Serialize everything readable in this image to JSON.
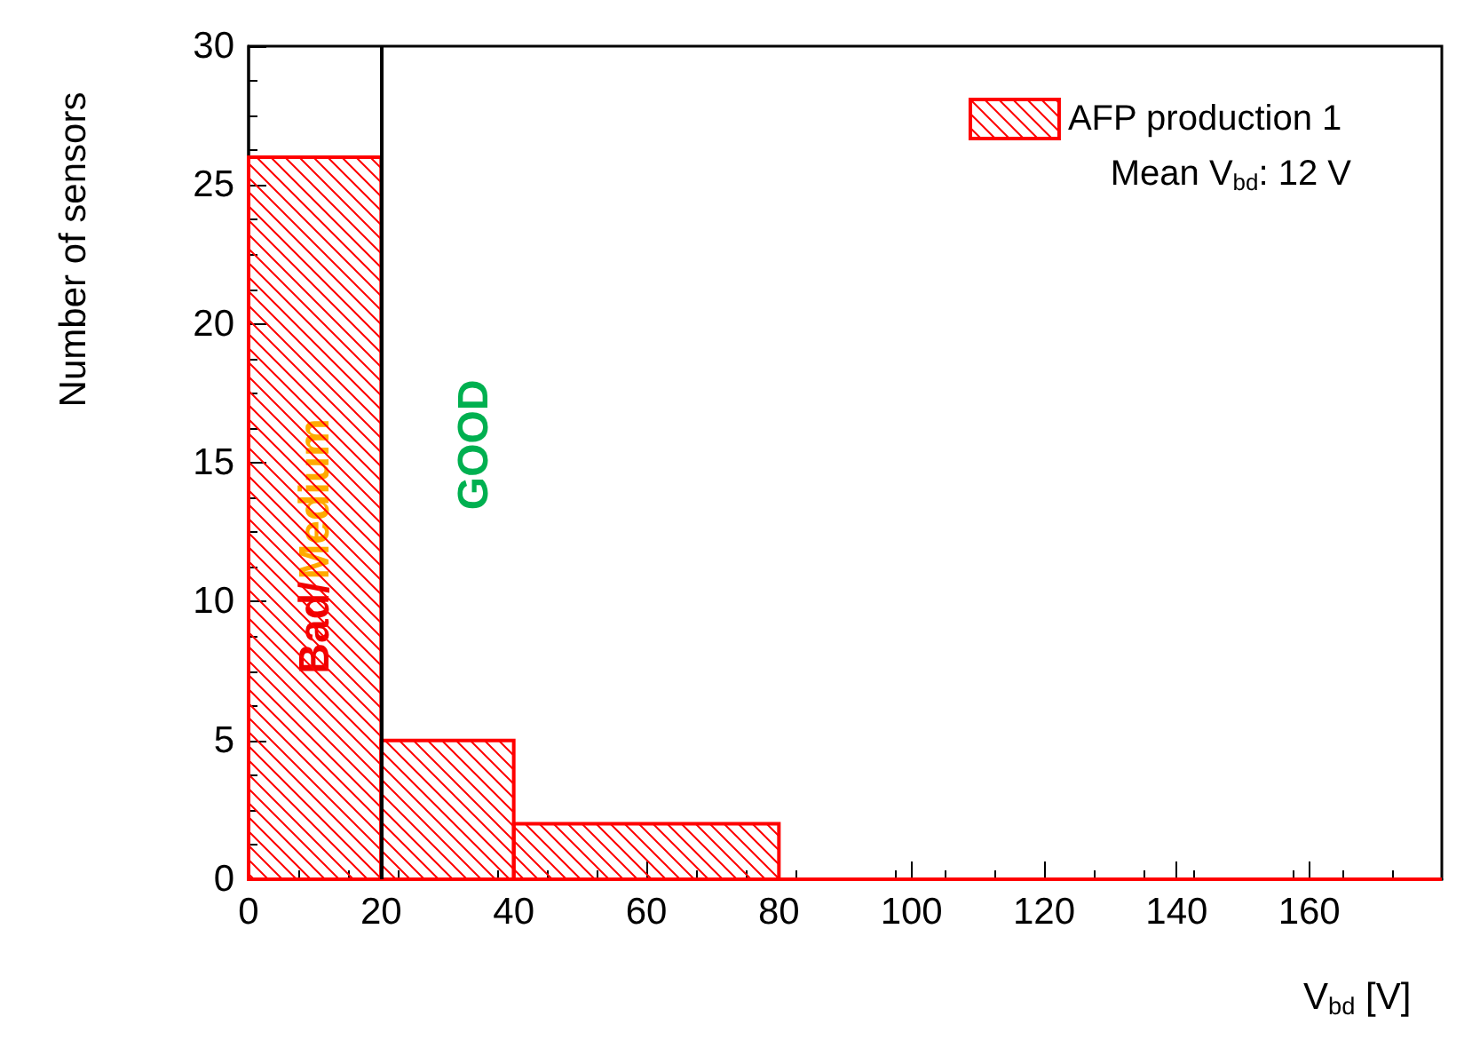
{
  "chart_data": {
    "type": "histogram",
    "xlabel": "V$_{bd}$ [V]",
    "ylabel": "Number of sensors",
    "bins": [
      0,
      20,
      40,
      80,
      180
    ],
    "series": [
      {
        "name": "AFP production 1",
        "color": "#ff0000",
        "values": [
          26,
          5,
          2,
          0
        ]
      }
    ],
    "xlim": [
      0,
      180
    ],
    "xticks": [
      0,
      20,
      40,
      60,
      80,
      100,
      120,
      140,
      160
    ],
    "ylim": [
      0,
      30
    ],
    "yticks": [
      0,
      5,
      10,
      15,
      20,
      25,
      30
    ],
    "ref_lines": [
      {
        "axis": "x",
        "value": 20,
        "color": "#000000"
      }
    ],
    "annotations": [
      "Mean V$_{bd}$: 12 V",
      "Bad/",
      "Medium",
      "GOOD"
    ],
    "legend": "top right",
    "grid": false
  }
}
